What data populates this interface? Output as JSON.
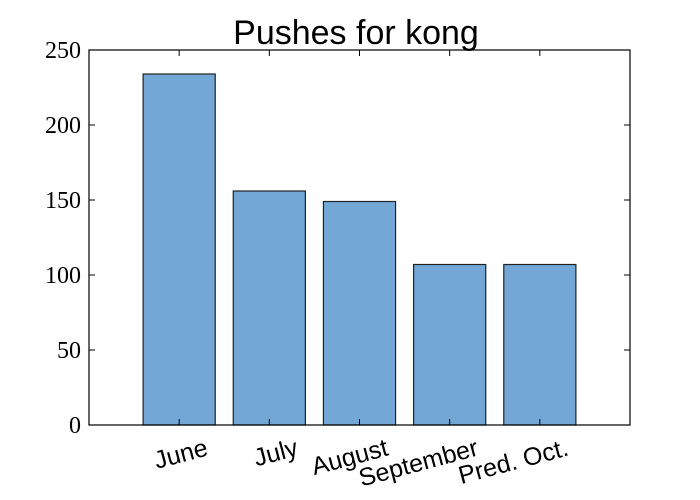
{
  "chart_data": {
    "type": "bar",
    "title": "Pushes for kong",
    "xlabel": "",
    "ylabel": "",
    "categories": [
      "June",
      "July",
      "August",
      "September",
      "Pred. Oct."
    ],
    "values": [
      234,
      156,
      149,
      107,
      107
    ],
    "ylim": [
      0,
      250
    ],
    "yticks": [
      0,
      50,
      100,
      150,
      200,
      250
    ],
    "ytick_labels": [
      "0",
      "50",
      "100",
      "150",
      "200",
      "250"
    ],
    "grid": false,
    "legend": "none",
    "colors": {
      "bar_fill": "#72a7d6",
      "bar_edge": "#222222",
      "axes": "#000000"
    }
  }
}
